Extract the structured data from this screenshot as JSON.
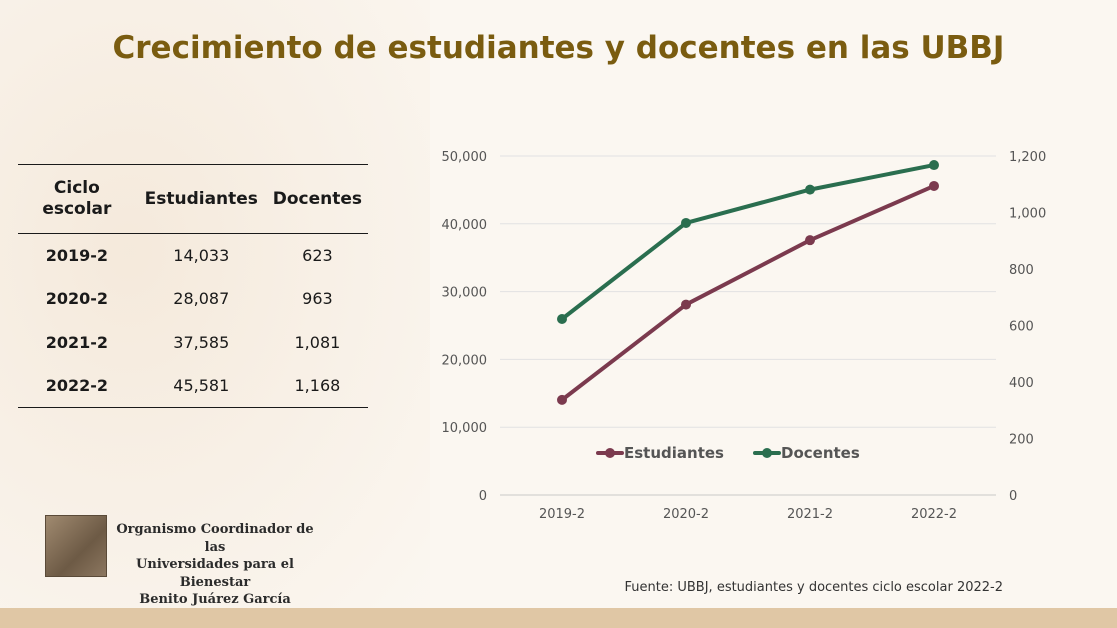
{
  "title": "Crecimiento de estudiantes y docentes en las UBBJ",
  "table": {
    "headers": [
      "Ciclo escolar",
      "Estudiantes",
      "Docentes"
    ],
    "rows": [
      [
        "2019-2",
        "14,033",
        "623"
      ],
      [
        "2020-2",
        "28,087",
        "963"
      ],
      [
        "2021-2",
        "37,585",
        "1,081"
      ],
      [
        "2022-2",
        "45,581",
        "1,168"
      ]
    ]
  },
  "organization": {
    "line1": "Organismo Coordinador de las",
    "line2": "Universidades para el Bienestar",
    "line3": "Benito Juárez García"
  },
  "source": "Fuente: UBBJ, estudiantes y docentes ciclo escolar 2022-2",
  "chart_data": {
    "type": "line",
    "categories": [
      "2019-2",
      "2020-2",
      "2021-2",
      "2022-2"
    ],
    "series": [
      {
        "name": "Estudiantes",
        "values": [
          14033,
          28087,
          37585,
          45581
        ],
        "color": "#7b3a4e",
        "axis": "left"
      },
      {
        "name": "Docentes",
        "values": [
          623,
          963,
          1081,
          1168
        ],
        "color": "#2a6e4f",
        "axis": "right"
      }
    ],
    "y_left": {
      "range": [
        0,
        50000
      ],
      "ticks": [
        "0",
        "10,000",
        "20,000",
        "30,000",
        "40,000",
        "50,000"
      ]
    },
    "y_right": {
      "range": [
        0,
        1200
      ],
      "ticks": [
        "0",
        "200",
        "400",
        "600",
        "800",
        "1,000",
        "1,200"
      ]
    },
    "grid": true,
    "legend": "inside-bottom"
  }
}
